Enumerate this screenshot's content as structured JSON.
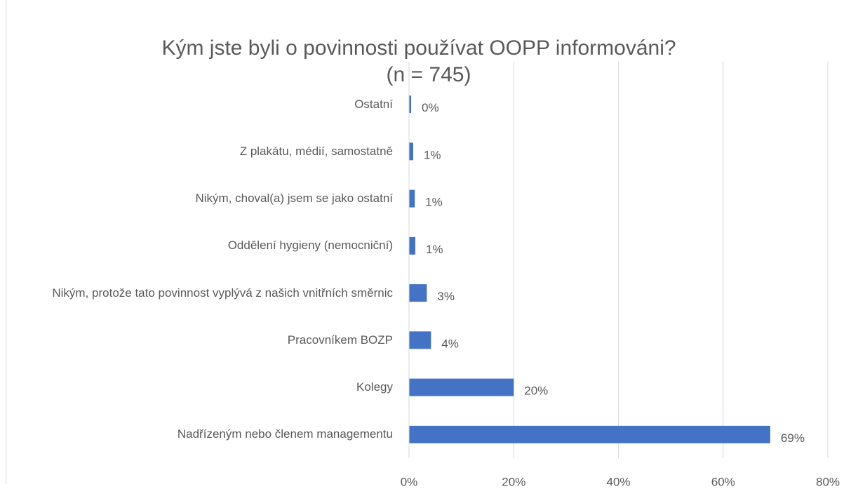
{
  "chart_data": {
    "type": "barh",
    "title": "Kým jste byli o povinnosti používat OOPP informováni?",
    "subtitle": "(n = 745)",
    "categories": [
      "Ostatní",
      "Z plakátu, médií, samostatně",
      "Nikým, choval(a) jsem se jako ostatní",
      "Oddělení hygieny (nemocniční)",
      "Nikým, protože tato povinnost vyplývá z našich vnitřních směrnic",
      "Pracovníkem BOZP",
      "Kolegy",
      "Nadřízeným nebo členem managementu"
    ],
    "values": [
      0.4,
      0.8,
      1.1,
      1.2,
      3.4,
      4.2,
      20,
      69
    ],
    "value_labels": [
      "0%",
      "1%",
      "1%",
      "1%",
      "3%",
      "4%",
      "20%",
      "69%"
    ],
    "color": "#4472c4",
    "xlim": [
      0,
      80
    ],
    "xticks": [
      {
        "value": 0,
        "label": "0%"
      },
      {
        "value": 20,
        "label": "20%"
      },
      {
        "value": 40,
        "label": "40%"
      },
      {
        "value": 60,
        "label": "60%"
      },
      {
        "value": 80,
        "label": "80%"
      }
    ],
    "grid": true
  }
}
